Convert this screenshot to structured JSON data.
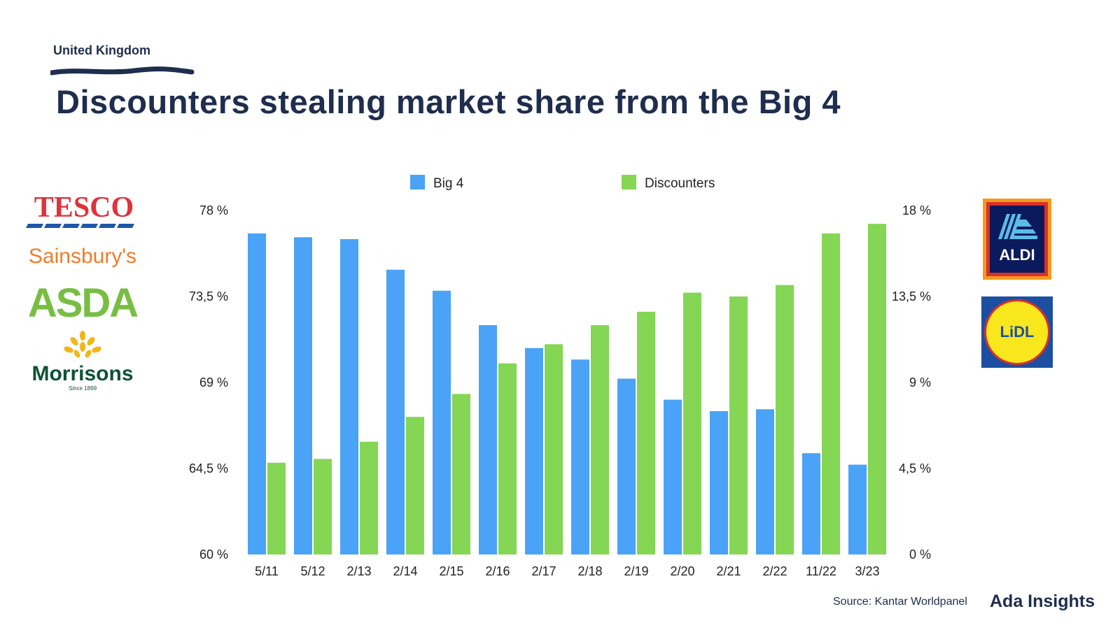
{
  "header": {
    "eyebrow": "United Kingdom",
    "title": "Discounters stealing market share from the Big 4"
  },
  "logos": {
    "tesco": "TESCO",
    "sainsburys": "Sainsbury's",
    "asda": "ASDA",
    "morrisons": "Morrisons",
    "morrisons_since": "Since 1899",
    "aldi": "ALDI",
    "lidl": "LiDL"
  },
  "footer": {
    "source": "Source: Kantar Worldpanel",
    "brand": "Ada Insights"
  },
  "colors": {
    "big4": "#4aa3f7",
    "discounters": "#84d654",
    "title": "#1f2d4e",
    "tesco_red": "#e0323a",
    "tesco_blue": "#1f56a8",
    "sainsburys": "#f07c28",
    "asda": "#78be43",
    "morrisons": "#0f5136",
    "morrisons_gold": "#f2b51c",
    "aldi_blue": "#0b1a5c",
    "aldi_orange": "#f59a1b",
    "lidl_blue": "#1d4fa0",
    "lidl_yellow": "#f7e71c"
  },
  "chart_data": {
    "type": "bar",
    "categories": [
      "5/11",
      "5/12",
      "2/13",
      "2/14",
      "2/15",
      "2/16",
      "2/17",
      "2/18",
      "2/19",
      "2/20",
      "2/21",
      "2/22",
      "11/22",
      "3/23"
    ],
    "series": [
      {
        "name": "Big 4",
        "axis": "left",
        "values": [
          76.8,
          76.6,
          76.5,
          74.9,
          73.8,
          72.0,
          70.8,
          70.2,
          69.2,
          68.1,
          67.5,
          67.6,
          65.3,
          64.7
        ]
      },
      {
        "name": "Discounters",
        "axis": "right",
        "values": [
          4.8,
          5.0,
          5.9,
          7.2,
          8.4,
          10.0,
          11.0,
          12.0,
          12.7,
          13.7,
          13.5,
          14.1,
          16.8,
          17.3
        ]
      }
    ],
    "y_left": {
      "range": [
        60,
        78
      ],
      "ticks": [
        60,
        64.5,
        69,
        73.5,
        78
      ],
      "tick_labels": [
        "60 %",
        "64,5 %",
        "69 %",
        "73,5 %",
        "78 %"
      ]
    },
    "y_right": {
      "range": [
        0,
        18
      ],
      "ticks": [
        0,
        4.5,
        9,
        13.5,
        18
      ],
      "tick_labels": [
        "0 %",
        "4,5 %",
        "9 %",
        "13,5 %",
        "18 %"
      ]
    },
    "legend": [
      "Big 4",
      "Discounters"
    ],
    "legend_position": "top",
    "grid": false
  }
}
